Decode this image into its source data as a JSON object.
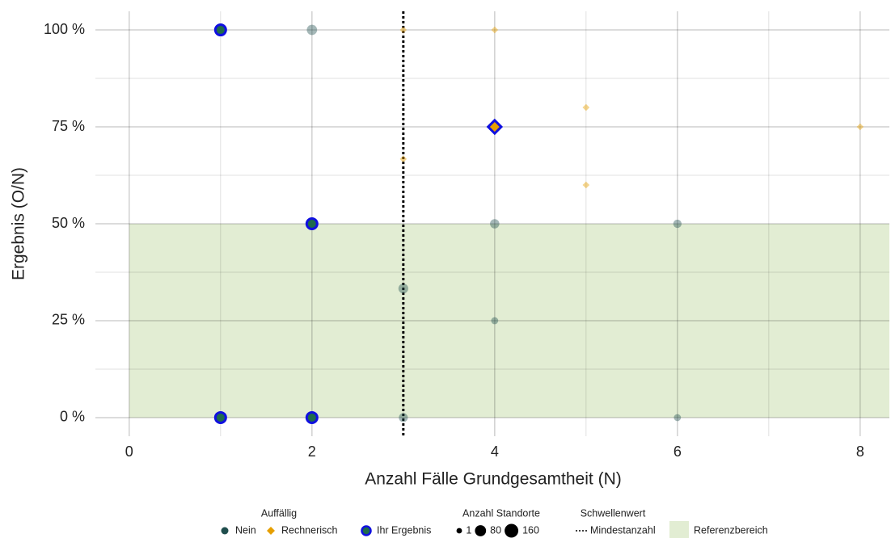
{
  "chart_data": {
    "type": "scatter",
    "xlabel": "Anzahl Fälle Grundgesamtheit (N)",
    "ylabel": "Ergebnis (O/N)",
    "xlim": [
      -0.37,
      8.32
    ],
    "ylim": [
      -4.8,
      104.8
    ],
    "xticks": [
      0,
      2,
      4,
      6,
      8
    ],
    "yticks": [
      {
        "value": 0,
        "label": "0 %"
      },
      {
        "value": 25,
        "label": "25 %"
      },
      {
        "value": 50,
        "label": "50 %"
      },
      {
        "value": 75,
        "label": "75 %"
      },
      {
        "value": 100,
        "label": "100 %"
      }
    ],
    "x_minor_ticks": [
      1,
      3,
      5,
      7
    ],
    "y_minor_ticks": [
      12.5,
      37.5,
      62.5,
      87.5
    ],
    "grid": true,
    "legend_position": "bottom",
    "color_legend_title": "Auffällig",
    "size_legend_title": "Anzahl Standorte",
    "size_legend": [
      1,
      80,
      160
    ],
    "highlight_name": "Ihr Ergebnis",
    "highlight_color": "#1010e0",
    "highlight_fill": "#1f6b4d",
    "series": [
      {
        "name": "Nein",
        "color": "#1f4e4d",
        "shape": "circle",
        "x": [
          2,
          3,
          4,
          4,
          6,
          6,
          3,
          1,
          2,
          1,
          2
        ],
        "values": [
          100,
          33.3,
          50,
          25,
          50,
          0,
          0,
          100,
          50,
          0,
          0
        ],
        "sizes": [
          60,
          50,
          40,
          10,
          25,
          10,
          35,
          40,
          40,
          40,
          40
        ],
        "highlighted": [
          false,
          false,
          false,
          false,
          false,
          false,
          false,
          true,
          true,
          true,
          true
        ]
      },
      {
        "name": "Rechnerisch",
        "color": "#e69f00",
        "shape": "diamond",
        "x": [
          3,
          4,
          5,
          5,
          8,
          3,
          4
        ],
        "values": [
          100,
          100,
          80,
          60,
          75,
          66.7,
          75
        ],
        "sizes": [
          1,
          1,
          1,
          1,
          1,
          1,
          40
        ],
        "highlighted": [
          false,
          false,
          false,
          false,
          false,
          false,
          true
        ]
      }
    ],
    "threshold": {
      "title": "Schwellenwert",
      "name": "Mindestanzahl",
      "x": 3,
      "color": "#000000"
    },
    "reference_area": {
      "name": "Referenzbereich",
      "xmin": 0,
      "ymin": 0,
      "ymax": 50,
      "color": "#e2edd3"
    }
  }
}
